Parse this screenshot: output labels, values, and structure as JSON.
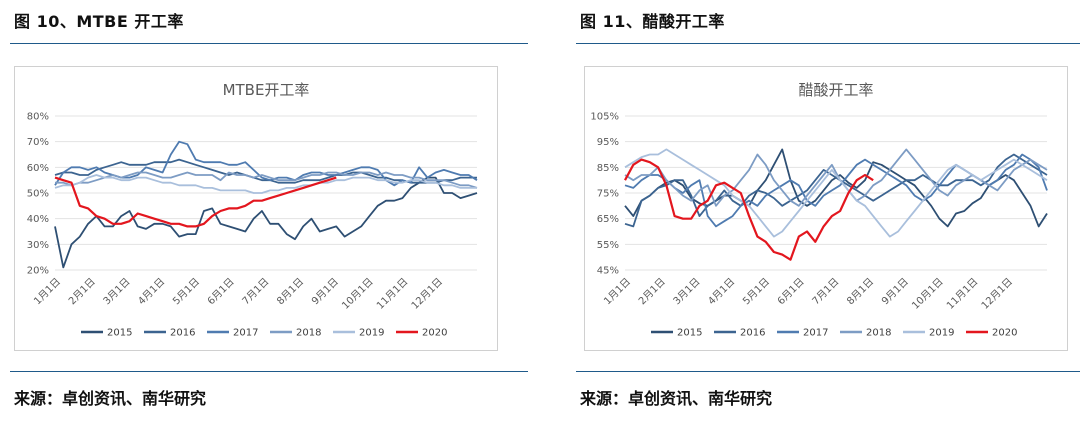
{
  "left": {
    "figure_title": "图 10、MTBE 开工率",
    "source": "来源：卓创资讯、南华研究"
  },
  "right": {
    "figure_title": "图 11、醋酸开工率",
    "source": "来源：卓创资讯、南华研究"
  },
  "colors": {
    "2015": "#2e4f73",
    "2016": "#3c6490",
    "2017": "#4f7bb0",
    "2018": "#7d9cc4",
    "2019": "#a9bfdc",
    "2020": "#e3161e",
    "rule": "#1f5a8a"
  },
  "chart_data": [
    {
      "type": "line",
      "title": "MTBE开工率",
      "x_ticks": [
        "1月1日",
        "2月1日",
        "3月1日",
        "4月1日",
        "5月1日",
        "6月1日",
        "7月1日",
        "8月1日",
        "9月1日",
        "10月1日",
        "11月1日",
        "12月1日"
      ],
      "y_ticks": [
        "20%",
        "30%",
        "40%",
        "50%",
        "60%",
        "70%",
        "80%"
      ],
      "ylim": [
        20,
        80
      ],
      "num_points": 52,
      "legend_position": "bottom",
      "series": [
        {
          "name": "2015",
          "values": [
            37,
            21,
            30,
            33,
            38,
            41,
            37,
            37,
            41,
            43,
            37,
            36,
            38,
            38,
            37,
            33,
            34,
            34,
            43,
            44,
            38,
            37,
            36,
            35,
            40,
            43,
            38,
            38,
            34,
            32,
            37,
            40,
            35,
            36,
            37,
            33,
            35,
            37,
            41,
            45,
            47,
            47,
            48,
            52,
            54,
            56,
            56,
            50,
            50,
            48,
            49,
            50
          ]
        },
        {
          "name": "2016",
          "values": [
            57,
            58,
            58,
            57,
            57,
            59,
            60,
            61,
            62,
            61,
            61,
            61,
            62,
            62,
            62,
            63,
            62,
            61,
            60,
            59,
            58,
            57,
            58,
            57,
            56,
            55,
            55,
            54,
            54,
            54,
            55,
            55,
            55,
            56,
            57,
            57,
            58,
            58,
            57,
            56,
            56,
            55,
            55,
            54,
            54,
            54,
            54,
            55,
            55,
            56,
            56,
            56
          ]
        },
        {
          "name": "2017",
          "values": [
            53,
            58,
            60,
            60,
            59,
            60,
            58,
            57,
            56,
            56,
            57,
            60,
            59,
            58,
            65,
            70,
            69,
            63,
            62,
            62,
            62,
            61,
            61,
            62,
            59,
            56,
            55,
            56,
            56,
            55,
            57,
            58,
            58,
            57,
            57,
            58,
            59,
            60,
            60,
            59,
            55,
            53,
            55,
            54,
            60,
            56,
            58,
            59,
            58,
            57,
            57,
            55
          ]
        },
        {
          "name": "2018",
          "values": [
            54,
            54,
            53,
            54,
            54,
            55,
            56,
            57,
            56,
            57,
            58,
            58,
            57,
            56,
            56,
            57,
            58,
            57,
            57,
            57,
            55,
            58,
            57,
            57,
            56,
            57,
            56,
            55,
            55,
            55,
            56,
            57,
            57,
            58,
            58,
            57,
            57,
            58,
            58,
            57,
            58,
            57,
            57,
            56,
            56,
            55,
            55,
            55,
            54,
            53,
            53,
            52
          ]
        },
        {
          "name": "2019",
          "values": [
            52,
            53,
            53,
            54,
            56,
            57,
            56,
            56,
            55,
            55,
            56,
            56,
            55,
            54,
            54,
            53,
            53,
            53,
            52,
            52,
            51,
            51,
            51,
            51,
            50,
            50,
            51,
            51,
            52,
            52,
            53,
            53,
            54,
            54,
            55,
            55,
            56,
            56,
            56,
            55,
            55,
            54,
            54,
            55,
            55,
            54,
            54,
            53,
            53,
            52,
            52,
            52
          ]
        },
        {
          "name": "2020",
          "values": [
            56,
            55,
            54,
            45,
            44,
            41,
            40,
            38,
            38,
            39,
            42,
            41,
            40,
            39,
            38,
            38,
            37,
            37,
            38,
            41,
            43,
            44,
            44,
            45,
            47,
            47,
            48,
            49,
            50,
            51,
            52,
            53,
            54,
            55,
            56
          ]
        }
      ]
    },
    {
      "type": "line",
      "title": "醋酸开工率",
      "x_ticks": [
        "1月1日",
        "2月1日",
        "3月1日",
        "4月1日",
        "5月1日",
        "6月1日",
        "7月1日",
        "8月1日",
        "9月1日",
        "10月1日",
        "11月1日",
        "12月1日"
      ],
      "y_ticks": [
        "45%",
        "55%",
        "65%",
        "75%",
        "85%",
        "95%",
        "105%"
      ],
      "ylim": [
        45,
        105
      ],
      "num_points": 52,
      "legend_position": "bottom",
      "series": [
        {
          "name": "2015",
          "values": [
            70,
            66,
            72,
            74,
            77,
            79,
            80,
            78,
            73,
            71,
            70,
            72,
            74,
            74,
            72,
            70,
            76,
            80,
            86,
            92,
            80,
            72,
            70,
            72,
            76,
            80,
            82,
            79,
            77,
            80,
            87,
            86,
            84,
            82,
            80,
            78,
            74,
            70,
            65,
            62,
            67,
            68,
            71,
            73,
            78,
            80,
            82,
            80,
            75,
            70,
            62,
            67
          ]
        },
        {
          "name": "2016",
          "values": [
            63,
            62,
            72,
            74,
            77,
            78,
            80,
            80,
            74,
            66,
            70,
            72,
            76,
            72,
            70,
            74,
            76,
            75,
            73,
            70,
            72,
            74,
            76,
            80,
            84,
            82,
            80,
            78,
            76,
            74,
            72,
            74,
            76,
            78,
            80,
            80,
            82,
            80,
            78,
            78,
            80,
            80,
            80,
            78,
            80,
            85,
            88,
            90,
            88,
            86,
            84,
            82
          ]
        },
        {
          "name": "2017",
          "values": [
            78,
            77,
            80,
            82,
            82,
            80,
            77,
            75,
            78,
            80,
            66,
            62,
            64,
            66,
            70,
            72,
            70,
            74,
            76,
            78,
            80,
            78,
            72,
            70,
            74,
            76,
            78,
            82,
            86,
            88,
            86,
            84,
            82,
            80,
            78,
            74,
            72,
            74,
            78,
            82,
            86,
            84,
            82,
            80,
            78,
            80,
            84,
            86,
            90,
            88,
            85,
            76
          ]
        },
        {
          "name": "2018",
          "values": [
            82,
            80,
            82,
            82,
            85,
            80,
            77,
            74,
            72,
            76,
            78,
            70,
            74,
            76,
            80,
            84,
            90,
            86,
            80,
            76,
            72,
            70,
            74,
            78,
            82,
            86,
            80,
            76,
            72,
            74,
            78,
            80,
            84,
            88,
            92,
            88,
            84,
            80,
            76,
            74,
            78,
            80,
            82,
            80,
            78,
            76,
            80,
            84,
            86,
            88,
            86,
            84
          ]
        },
        {
          "name": "2019",
          "values": [
            85,
            87,
            89,
            90,
            90,
            92,
            90,
            88,
            86,
            84,
            82,
            80,
            78,
            74,
            72,
            70,
            66,
            62,
            58,
            60,
            64,
            68,
            72,
            76,
            80,
            84,
            80,
            76,
            72,
            70,
            66,
            62,
            58,
            60,
            64,
            68,
            72,
            76,
            80,
            84,
            86,
            84,
            82,
            80,
            82,
            84,
            86,
            88,
            86,
            84,
            82,
            80
          ]
        },
        {
          "name": "2020",
          "values": [
            80,
            86,
            88,
            87,
            85,
            78,
            66,
            65,
            65,
            70,
            72,
            78,
            79,
            77,
            75,
            66,
            58,
            56,
            52,
            51,
            49,
            58,
            60,
            56,
            62,
            66,
            68,
            75,
            80,
            82,
            80
          ]
        }
      ]
    }
  ]
}
